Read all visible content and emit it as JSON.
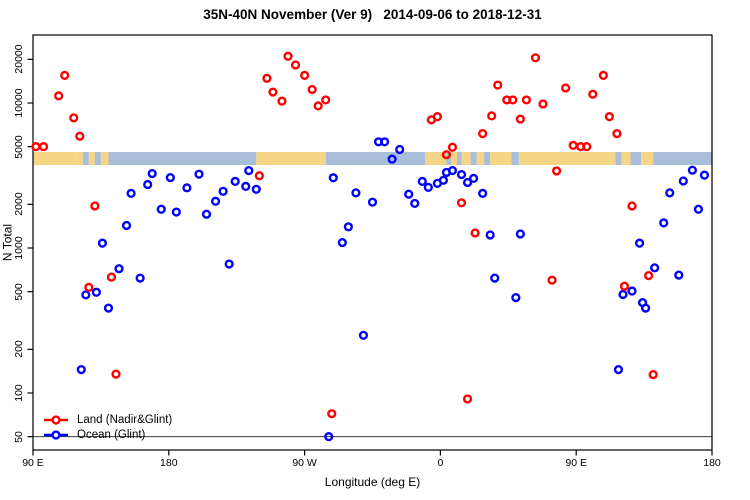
{
  "figure": {
    "background": "#FFFFFF"
  },
  "chart_data": {
    "type": "scatter",
    "title": "35N-40N November (Ver 9)   2014-09-06 to 2018-12-31",
    "xlabel": "Longitude (deg E)",
    "ylabel": "N Total",
    "x_axis": {
      "range": [
        90,
        540
      ],
      "note": "longitude axis wraps eastward: 90E -> 180 -> 90W -> 0 -> 90E -> 180",
      "ticks": [
        {
          "lon": 90,
          "label": "90 E"
        },
        {
          "lon": 180,
          "label": "180"
        },
        {
          "lon": 270,
          "label": "90 W"
        },
        {
          "lon": 360,
          "label": "0"
        },
        {
          "lon": 450,
          "label": "90 E"
        },
        {
          "lon": 540,
          "label": "180"
        }
      ]
    },
    "y_axis": {
      "scale": "log",
      "range": [
        40,
        29000
      ],
      "ticks": [
        50,
        100,
        200,
        500,
        1000,
        2000,
        5000,
        10000,
        20000
      ]
    },
    "reference_line": {
      "value": 50,
      "color": "#3c3c3c"
    },
    "map_strip": {
      "land_color": "#F7D586",
      "ocean_color": "#A9BEDB",
      "segments": [
        {
          "from": 90,
          "to": 118,
          "type": "land"
        },
        {
          "from": 118,
          "to": 123,
          "type": "land"
        },
        {
          "from": 123,
          "to": 127,
          "type": "ocean"
        },
        {
          "from": 127,
          "to": 131,
          "type": "land"
        },
        {
          "from": 131,
          "to": 135,
          "type": "ocean"
        },
        {
          "from": 135,
          "to": 140,
          "type": "land"
        },
        {
          "from": 140,
          "to": 238,
          "type": "ocean"
        },
        {
          "from": 238,
          "to": 284,
          "type": "land"
        },
        {
          "from": 284,
          "to": 350,
          "type": "ocean"
        },
        {
          "from": 350,
          "to": 364,
          "type": "land"
        },
        {
          "from": 364,
          "to": 367,
          "type": "ocean"
        },
        {
          "from": 367,
          "to": 371,
          "type": "land"
        },
        {
          "from": 371,
          "to": 374,
          "type": "ocean"
        },
        {
          "from": 374,
          "to": 380,
          "type": "land"
        },
        {
          "from": 380,
          "to": 384,
          "type": "ocean"
        },
        {
          "from": 384,
          "to": 389,
          "type": "land"
        },
        {
          "from": 389,
          "to": 393,
          "type": "ocean"
        },
        {
          "from": 393,
          "to": 407,
          "type": "land"
        },
        {
          "from": 407,
          "to": 412,
          "type": "ocean"
        },
        {
          "from": 412,
          "to": 476,
          "type": "land"
        },
        {
          "from": 476,
          "to": 480,
          "type": "ocean"
        },
        {
          "from": 480,
          "to": 486,
          "type": "land"
        },
        {
          "from": 486,
          "to": 493,
          "type": "ocean"
        },
        {
          "from": 493,
          "to": 501,
          "type": "land"
        },
        {
          "from": 501,
          "to": 540,
          "type": "ocean"
        }
      ]
    },
    "series": [
      {
        "name": "Land (Nadir&Glint)",
        "color": "#FF0000",
        "points": [
          [
            92,
            5000
          ],
          [
            97,
            5000
          ],
          [
            107,
            11200
          ],
          [
            111,
            15500
          ],
          [
            117,
            7900
          ],
          [
            121,
            5900
          ],
          [
            131,
            1950
          ],
          [
            127,
            535
          ],
          [
            142,
            630
          ],
          [
            145,
            135
          ],
          [
            240,
            3150
          ],
          [
            245,
            14800
          ],
          [
            249,
            11900
          ],
          [
            255,
            10300
          ],
          [
            259,
            21000
          ],
          [
            264,
            18300
          ],
          [
            270,
            15500
          ],
          [
            275,
            12400
          ],
          [
            279,
            9550
          ],
          [
            284,
            10500
          ],
          [
            288,
            72
          ],
          [
            354,
            7650
          ],
          [
            358,
            8050
          ],
          [
            364,
            4400
          ],
          [
            368,
            4950
          ],
          [
            374,
            2050
          ],
          [
            378,
            91
          ],
          [
            383,
            1270
          ],
          [
            388,
            6150
          ],
          [
            394,
            8150
          ],
          [
            398,
            13300
          ],
          [
            404,
            10500
          ],
          [
            408,
            10500
          ],
          [
            413,
            7750
          ],
          [
            417,
            10500
          ],
          [
            423,
            20500
          ],
          [
            428,
            9850
          ],
          [
            434,
            600
          ],
          [
            437,
            3400
          ],
          [
            443,
            12700
          ],
          [
            448,
            5100
          ],
          [
            453,
            5000
          ],
          [
            457,
            5000
          ],
          [
            461,
            11500
          ],
          [
            468,
            15500
          ],
          [
            472,
            8050
          ],
          [
            477,
            6150
          ],
          [
            482,
            545
          ],
          [
            487,
            1950
          ],
          [
            498,
            645
          ],
          [
            501,
            134
          ]
        ]
      },
      {
        "name": "Ocean (Glint)",
        "color": "#0000FF",
        "points": [
          [
            122,
            145
          ],
          [
            125,
            475
          ],
          [
            132,
            495
          ],
          [
            136,
            1080
          ],
          [
            140,
            385
          ],
          [
            147,
            720
          ],
          [
            152,
            1430
          ],
          [
            155,
            2380
          ],
          [
            161,
            620
          ],
          [
            166,
            2740
          ],
          [
            169,
            3260
          ],
          [
            175,
            1850
          ],
          [
            181,
            3060
          ],
          [
            185,
            1770
          ],
          [
            192,
            2600
          ],
          [
            200,
            3230
          ],
          [
            205,
            1710
          ],
          [
            211,
            2100
          ],
          [
            216,
            2460
          ],
          [
            220,
            775
          ],
          [
            224,
            2880
          ],
          [
            231,
            2660
          ],
          [
            233,
            3420
          ],
          [
            238,
            2540
          ],
          [
            286,
            50
          ],
          [
            289,
            3050
          ],
          [
            295,
            1090
          ],
          [
            299,
            1400
          ],
          [
            304,
            2400
          ],
          [
            309,
            250
          ],
          [
            315,
            2070
          ],
          [
            319,
            5400
          ],
          [
            323,
            5400
          ],
          [
            328,
            4100
          ],
          [
            333,
            4780
          ],
          [
            339,
            2350
          ],
          [
            343,
            2030
          ],
          [
            348,
            2880
          ],
          [
            352,
            2620
          ],
          [
            358,
            2790
          ],
          [
            362,
            2930
          ],
          [
            364,
            3320
          ],
          [
            368,
            3420
          ],
          [
            374,
            3210
          ],
          [
            378,
            2830
          ],
          [
            382,
            3020
          ],
          [
            388,
            2380
          ],
          [
            393,
            1230
          ],
          [
            396,
            620
          ],
          [
            410,
            455
          ],
          [
            413,
            1250
          ],
          [
            478,
            145
          ],
          [
            481,
            478
          ],
          [
            487,
            505
          ],
          [
            492,
            1080
          ],
          [
            494,
            420
          ],
          [
            496,
            385
          ],
          [
            502,
            730
          ],
          [
            508,
            1490
          ],
          [
            512,
            2400
          ],
          [
            518,
            650
          ],
          [
            521,
            2900
          ],
          [
            527,
            3440
          ],
          [
            531,
            1850
          ],
          [
            535,
            3180
          ]
        ]
      }
    ]
  },
  "legend": {
    "items": [
      {
        "label": "Land (Nadir&Glint)",
        "color": "#FF0000"
      },
      {
        "label": "Ocean (Glint)",
        "color": "#0000FF"
      }
    ]
  }
}
